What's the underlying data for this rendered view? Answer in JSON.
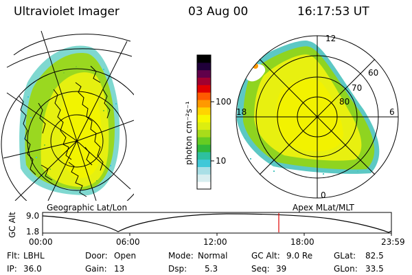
{
  "header": {
    "instrument": "Ultraviolet Imager",
    "date": "03 Aug 00",
    "time": "16:17:53 UT"
  },
  "left_panel": {
    "label": "Geographic Lat/Lon"
  },
  "right_panel": {
    "label": "Apex MLat/MLT",
    "lat_labels": [
      "60",
      "70",
      "80"
    ],
    "mlt_labels": {
      "top": "12",
      "left": "18",
      "right": "6",
      "bottom": "0"
    }
  },
  "colorbar": {
    "unit_label": "photon cm⁻²s⁻¹",
    "tick_labels": [
      "100",
      "10"
    ],
    "colors": [
      "#ffffff",
      "#d8eef0",
      "#a9dfe6",
      "#40c8d8",
      "#2ec0a0",
      "#30b83a",
      "#66cc22",
      "#a8dc1a",
      "#dcee10",
      "#f6f800",
      "#ffd400",
      "#ff9900",
      "#ff5a00",
      "#e00000",
      "#a00030",
      "#60004a",
      "#20003a",
      "#000000"
    ]
  },
  "orbit_plot": {
    "ylabel": "GC Alt",
    "y_ticks": [
      "9.0",
      "1.8"
    ],
    "x_ticks": [
      "00:00",
      "06:00",
      "12:00",
      "18:00",
      "23:59"
    ],
    "current_time_marker": "16:17:53",
    "marker_color": "#e00000"
  },
  "info": {
    "flt_label": "Flt:",
    "flt_value": "LBHL",
    "door_label": "Door:",
    "door_value": "Open",
    "mode_label": "Mode:",
    "mode_value": "Normal",
    "gcalt_label": "GC Alt:",
    "gcalt_value": "9.0 Re",
    "glat_label": "GLat:",
    "glat_value": "82.5",
    "ip_label": "IP:",
    "ip_value": "36.0",
    "gain_label": "Gain:",
    "gain_value": "13",
    "dsp_label": "Dsp:",
    "dsp_value": "5.3",
    "seq_label": "Seq:",
    "seq_value": "39",
    "glon_label": "GLon:",
    "glon_value": "33.5"
  }
}
